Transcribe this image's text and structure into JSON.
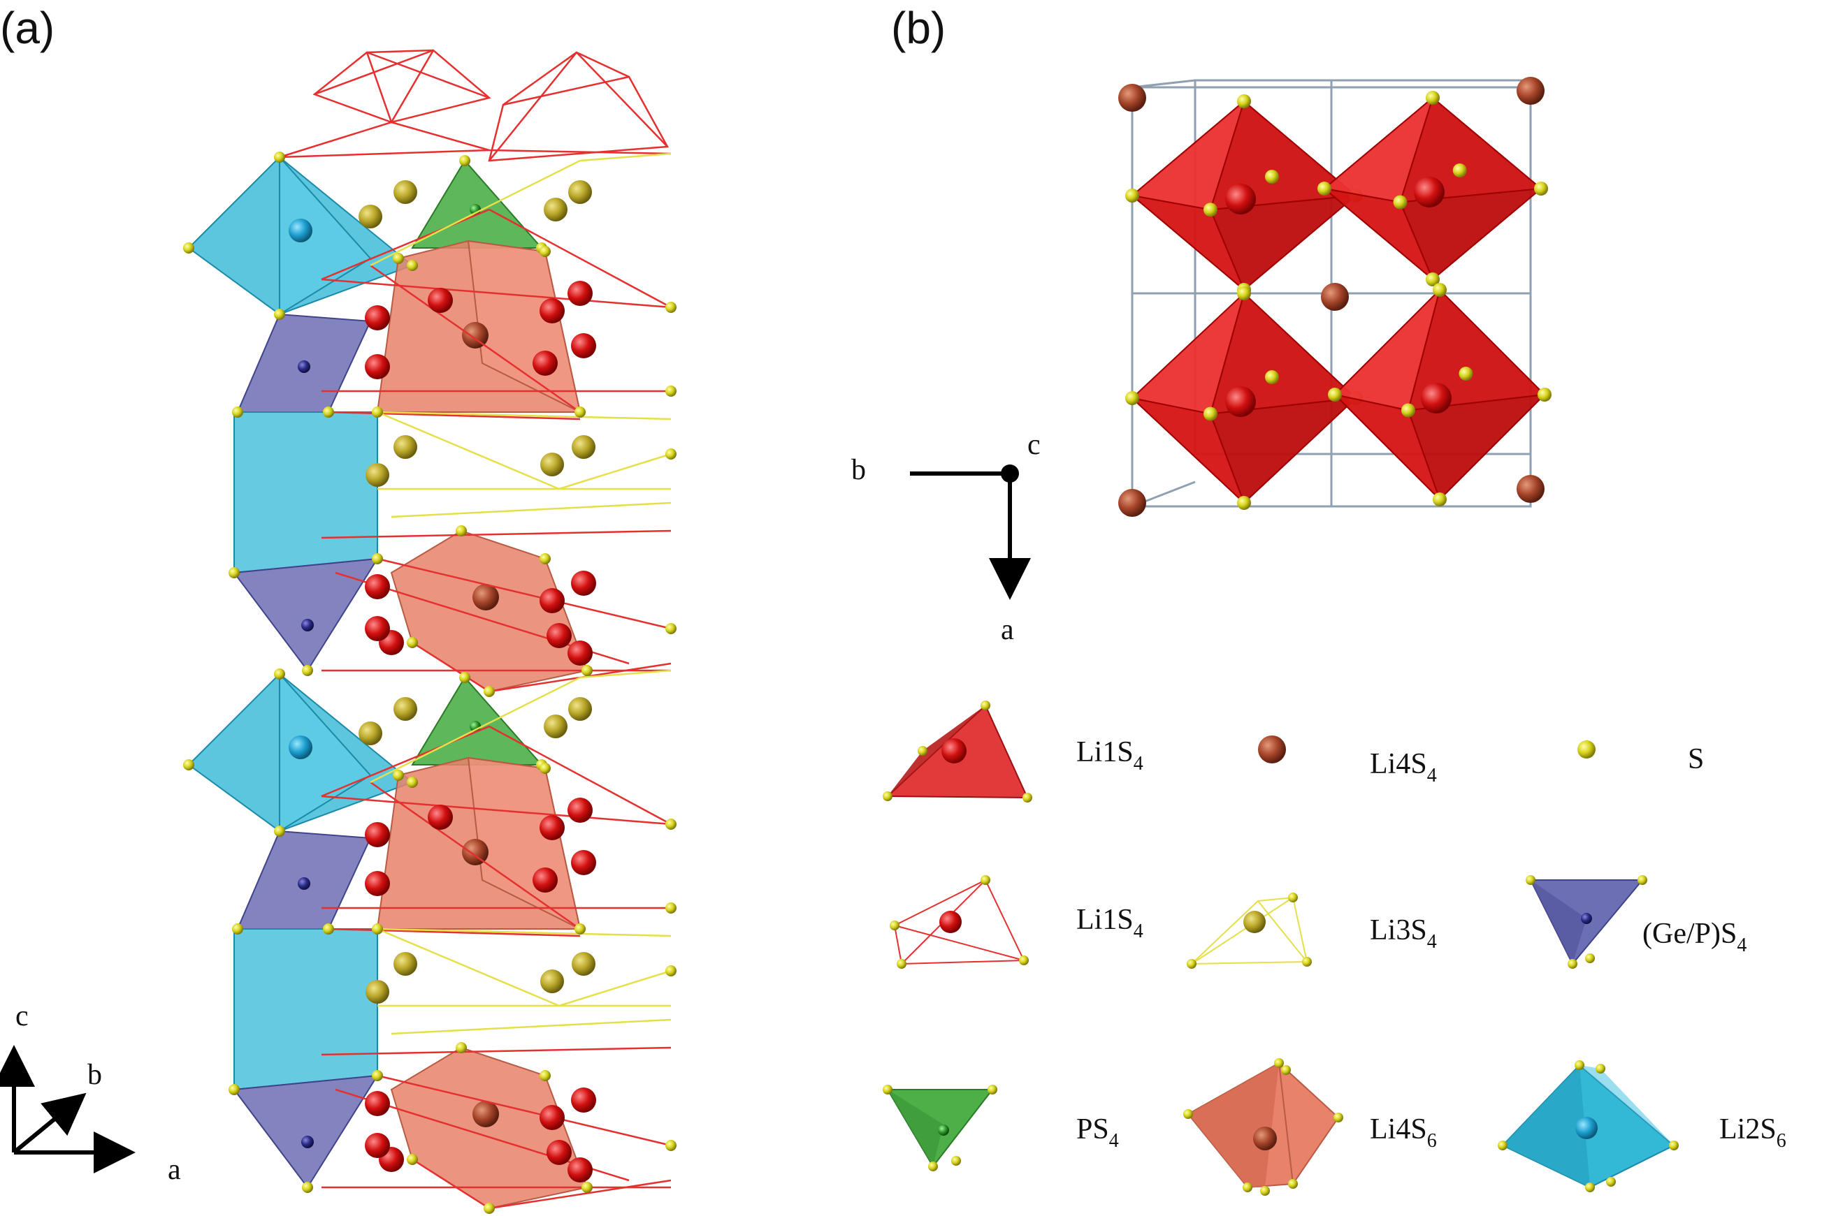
{
  "panels": {
    "a": {
      "label": "(a)"
    },
    "b": {
      "label": "(b)"
    }
  },
  "axes_a": {
    "c": "c",
    "b": "b",
    "a": "a"
  },
  "axes_b": {
    "b": "b",
    "c": "c",
    "a": "a"
  },
  "legend": [
    {
      "id": "li1s4-solid",
      "base": "Li1S",
      "sub": "4",
      "color": "#d83a3a"
    },
    {
      "id": "li4s4",
      "base": "Li4S",
      "sub": "4",
      "color": "#a0442c"
    },
    {
      "id": "s",
      "base": "S",
      "sub": "",
      "color": "#d9d92a"
    },
    {
      "id": "li1s4-wire",
      "base": "Li1S",
      "sub": "4",
      "color": "#e23a3a"
    },
    {
      "id": "li3s4",
      "base": "Li3S",
      "sub": "4",
      "color": "#e5e04a"
    },
    {
      "id": "gep-s4",
      "base": "(Ge/P)S",
      "sub": "4",
      "color": "#6d6fb4"
    },
    {
      "id": "ps4",
      "base": "PS",
      "sub": "4",
      "color": "#4caf48"
    },
    {
      "id": "li4s6",
      "base": "Li4S",
      "sub": "6",
      "color": "#e8826a"
    },
    {
      "id": "li2s6",
      "base": "Li2S",
      "sub": "6",
      "color": "#33b8d6"
    }
  ]
}
